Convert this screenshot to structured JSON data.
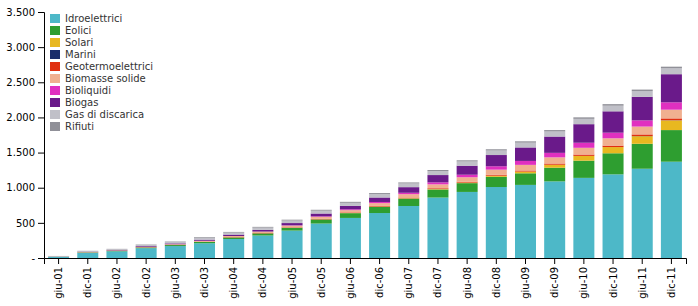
{
  "chart_data": {
    "type": "bar",
    "stacked": true,
    "grid": false,
    "legend": "top-left",
    "categories": [
      "giu-01",
      "dic-01",
      "giu-02",
      "dic-02",
      "giu-03",
      "dic-03",
      "giu-04",
      "dic-04",
      "giu-05",
      "dic-05",
      "giu-06",
      "dic-06",
      "giu-07",
      "dic-07",
      "giu-08",
      "dic-08",
      "giu-09",
      "dic-09",
      "giu-10",
      "dic-10",
      "giu-11",
      "dic-11"
    ],
    "series": [
      {
        "name": "Idroelettrici",
        "color": "#4db8c8",
        "values": [
          18,
          75,
          95,
          140,
          170,
          210,
          270,
          320,
          390,
          490,
          570,
          640,
          740,
          860,
          940,
          1010,
          1040,
          1090,
          1140,
          1190,
          1270,
          1370
        ]
      },
      {
        "name": "Eolici",
        "color": "#2e9e30",
        "values": [
          1,
          5,
          7,
          10,
          14,
          18,
          22,
          30,
          40,
          58,
          68,
          88,
          105,
          115,
          125,
          145,
          165,
          195,
          245,
          300,
          355,
          450
        ]
      },
      {
        "name": "Solari",
        "color": "#e8b820",
        "values": [
          0,
          0,
          0,
          0,
          0,
          0,
          0,
          1,
          1,
          2,
          3,
          4,
          5,
          6,
          8,
          16,
          25,
          42,
          68,
          88,
          108,
          138
        ]
      },
      {
        "name": "Marini",
        "color": "#1a2e6b",
        "values": [
          0,
          0,
          0,
          0,
          0,
          0,
          0,
          0,
          0,
          0,
          0,
          0,
          0,
          0,
          0,
          0,
          0,
          0,
          0,
          0,
          2,
          2
        ]
      },
      {
        "name": "Geotermoelettrici",
        "color": "#e03010",
        "values": [
          2,
          3,
          3,
          4,
          4,
          5,
          5,
          5,
          6,
          7,
          8,
          9,
          10,
          11,
          12,
          14,
          15,
          17,
          19,
          21,
          23,
          26
        ]
      },
      {
        "name": "Biomasse solide",
        "color": "#f0b090",
        "values": [
          1,
          3,
          4,
          6,
          8,
          12,
          16,
          20,
          24,
          28,
          32,
          40,
          48,
          56,
          64,
          72,
          80,
          88,
          96,
          104,
          112,
          124
        ]
      },
      {
        "name": "Bioliquidi",
        "color": "#e030c0",
        "values": [
          0,
          0,
          0,
          0,
          0,
          0,
          0,
          0,
          4,
          8,
          12,
          16,
          20,
          28,
          36,
          48,
          56,
          64,
          72,
          80,
          88,
          105
        ]
      },
      {
        "name": "Biogas",
        "color": "#6a1a8a",
        "values": [
          1,
          4,
          6,
          10,
          12,
          16,
          20,
          24,
          32,
          40,
          48,
          64,
          80,
          104,
          128,
          160,
          192,
          232,
          264,
          304,
          336,
          400
        ]
      },
      {
        "name": "Gas di discarica",
        "color": "#c0c0c8",
        "values": [
          4,
          8,
          10,
          15,
          18,
          25,
          28,
          32,
          36,
          40,
          44,
          48,
          52,
          56,
          60,
          64,
          68,
          72,
          76,
          80,
          80,
          84
        ]
      },
      {
        "name": "Rifiuti",
        "color": "#909098",
        "values": [
          2,
          4,
          5,
          6,
          8,
          10,
          10,
          11,
          12,
          13,
          14,
          15,
          15,
          16,
          17,
          18,
          19,
          20,
          21,
          22,
          22,
          23
        ]
      }
    ],
    "ylim": [
      0,
      3500
    ],
    "yticks": [
      {
        "value": 0,
        "label": "-"
      },
      500,
      {
        "value": 1000,
        "label": "1.000"
      },
      {
        "value": 1500,
        "label": "1.500"
      },
      {
        "value": 2000,
        "label": "2.000"
      },
      {
        "value": 2500,
        "label": "2.500"
      },
      {
        "value": 3000,
        "label": "3.000"
      },
      {
        "value": 3500,
        "label": "3.500"
      }
    ]
  }
}
